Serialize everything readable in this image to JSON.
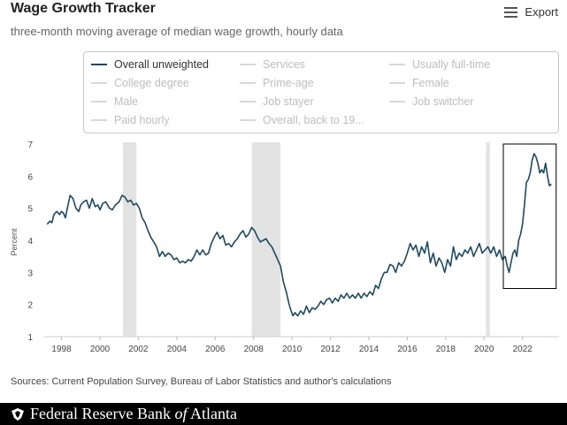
{
  "header": {
    "title": "Wage Growth Tracker",
    "subtitle": "three-month moving average of median wage growth, hourly data",
    "export_label": "Export",
    "export_icon": "hamburger-menu-icon"
  },
  "legend": {
    "items": [
      {
        "label": "Overall unweighted",
        "active": true
      },
      {
        "label": "Services",
        "active": false
      },
      {
        "label": "Usually full-time",
        "active": false
      },
      {
        "label": "College degree",
        "active": false
      },
      {
        "label": "Prime-age",
        "active": false
      },
      {
        "label": "Female",
        "active": false
      },
      {
        "label": "Male",
        "active": false
      },
      {
        "label": "Job stayer",
        "active": false
      },
      {
        "label": "Job switcher",
        "active": false
      },
      {
        "label": "Paid hourly",
        "active": false
      },
      {
        "label": "Overall, back to 19...",
        "active": false
      }
    ]
  },
  "chart_data": {
    "type": "line",
    "title": "",
    "xlabel": "",
    "ylabel": "Percent",
    "xlim": [
      1997.1,
      2023.9
    ],
    "ylim": [
      1,
      7
    ],
    "xticks": [
      "1998",
      "2000",
      "2002",
      "2004",
      "2006",
      "2008",
      "2010",
      "2012",
      "2014",
      "2016",
      "2018",
      "2020",
      "2022"
    ],
    "yticks": [
      "1",
      "2",
      "3",
      "4",
      "5",
      "6",
      "7"
    ],
    "grid": false,
    "line_color": "#1d4a63",
    "recession_color": "#e3e3e3",
    "recessions": [
      [
        2001.2,
        2001.9
      ],
      [
        2007.9,
        2009.4
      ],
      [
        2020.1,
        2020.3
      ]
    ],
    "highlight_box": {
      "x": [
        2021.0,
        2023.75
      ],
      "y": [
        2.5,
        7.0
      ]
    },
    "series": [
      {
        "values": [
          [
            1997.25,
            4.5
          ],
          [
            1997.4,
            4.6
          ],
          [
            1997.5,
            4.55
          ],
          [
            1997.6,
            4.8
          ],
          [
            1997.75,
            4.9
          ],
          [
            1997.9,
            4.8
          ],
          [
            1998.0,
            4.9
          ],
          [
            1998.1,
            4.85
          ],
          [
            1998.2,
            4.7
          ],
          [
            1998.3,
            5.0
          ],
          [
            1998.45,
            5.4
          ],
          [
            1998.6,
            5.3
          ],
          [
            1998.75,
            5.0
          ],
          [
            1998.9,
            4.9
          ],
          [
            1999.0,
            5.1
          ],
          [
            1999.15,
            5.2
          ],
          [
            1999.3,
            5.25
          ],
          [
            1999.45,
            5.0
          ],
          [
            1999.6,
            5.3
          ],
          [
            1999.75,
            5.05
          ],
          [
            1999.9,
            5.1
          ],
          [
            2000.0,
            4.95
          ],
          [
            2000.15,
            5.15
          ],
          [
            2000.3,
            5.2
          ],
          [
            2000.5,
            5.0
          ],
          [
            2000.65,
            4.95
          ],
          [
            2000.8,
            5.1
          ],
          [
            2001.0,
            5.2
          ],
          [
            2001.15,
            5.4
          ],
          [
            2001.3,
            5.35
          ],
          [
            2001.45,
            5.2
          ],
          [
            2001.6,
            5.25
          ],
          [
            2001.75,
            5.1
          ],
          [
            2001.9,
            5.15
          ],
          [
            2002.05,
            5.0
          ],
          [
            2002.2,
            4.7
          ],
          [
            2002.35,
            4.55
          ],
          [
            2002.5,
            4.3
          ],
          [
            2002.65,
            4.1
          ],
          [
            2002.8,
            3.95
          ],
          [
            2002.95,
            3.8
          ],
          [
            2003.1,
            3.5
          ],
          [
            2003.25,
            3.65
          ],
          [
            2003.4,
            3.5
          ],
          [
            2003.55,
            3.6
          ],
          [
            2003.7,
            3.55
          ],
          [
            2003.85,
            3.4
          ],
          [
            2004.0,
            3.45
          ],
          [
            2004.15,
            3.3
          ],
          [
            2004.3,
            3.35
          ],
          [
            2004.45,
            3.3
          ],
          [
            2004.6,
            3.4
          ],
          [
            2004.75,
            3.35
          ],
          [
            2004.9,
            3.5
          ],
          [
            2005.05,
            3.7
          ],
          [
            2005.2,
            3.55
          ],
          [
            2005.35,
            3.7
          ],
          [
            2005.5,
            3.55
          ],
          [
            2005.65,
            3.6
          ],
          [
            2005.8,
            3.9
          ],
          [
            2005.95,
            4.1
          ],
          [
            2006.1,
            4.25
          ],
          [
            2006.25,
            4.05
          ],
          [
            2006.4,
            4.15
          ],
          [
            2006.55,
            3.85
          ],
          [
            2006.7,
            3.9
          ],
          [
            2006.85,
            3.8
          ],
          [
            2007.0,
            3.95
          ],
          [
            2007.15,
            4.05
          ],
          [
            2007.3,
            4.2
          ],
          [
            2007.45,
            4.3
          ],
          [
            2007.6,
            4.1
          ],
          [
            2007.75,
            4.2
          ],
          [
            2007.9,
            4.4
          ],
          [
            2008.05,
            4.3
          ],
          [
            2008.2,
            4.1
          ],
          [
            2008.35,
            3.95
          ],
          [
            2008.5,
            4.0
          ],
          [
            2008.65,
            4.05
          ],
          [
            2008.8,
            3.9
          ],
          [
            2008.95,
            3.8
          ],
          [
            2009.1,
            3.6
          ],
          [
            2009.25,
            3.4
          ],
          [
            2009.4,
            3.2
          ],
          [
            2009.55,
            2.7
          ],
          [
            2009.7,
            2.4
          ],
          [
            2009.85,
            2.0
          ],
          [
            2009.95,
            1.8
          ],
          [
            2010.05,
            1.65
          ],
          [
            2010.15,
            1.75
          ],
          [
            2010.3,
            1.65
          ],
          [
            2010.45,
            1.8
          ],
          [
            2010.6,
            1.7
          ],
          [
            2010.75,
            1.95
          ],
          [
            2010.9,
            1.75
          ],
          [
            2011.05,
            1.9
          ],
          [
            2011.2,
            1.85
          ],
          [
            2011.35,
            1.95
          ],
          [
            2011.5,
            2.1
          ],
          [
            2011.65,
            2.0
          ],
          [
            2011.8,
            2.15
          ],
          [
            2011.95,
            2.2
          ],
          [
            2012.1,
            2.05
          ],
          [
            2012.25,
            2.2
          ],
          [
            2012.4,
            2.1
          ],
          [
            2012.55,
            2.3
          ],
          [
            2012.7,
            2.2
          ],
          [
            2012.85,
            2.35
          ],
          [
            2013.0,
            2.2
          ],
          [
            2013.15,
            2.3
          ],
          [
            2013.3,
            2.2
          ],
          [
            2013.45,
            2.35
          ],
          [
            2013.6,
            2.2
          ],
          [
            2013.75,
            2.35
          ],
          [
            2013.9,
            2.25
          ],
          [
            2014.05,
            2.4
          ],
          [
            2014.2,
            2.3
          ],
          [
            2014.35,
            2.6
          ],
          [
            2014.5,
            2.5
          ],
          [
            2014.65,
            2.8
          ],
          [
            2014.8,
            3.0
          ],
          [
            2014.95,
            3.0
          ],
          [
            2015.1,
            3.25
          ],
          [
            2015.25,
            3.2
          ],
          [
            2015.4,
            3.0
          ],
          [
            2015.55,
            3.3
          ],
          [
            2015.7,
            3.2
          ],
          [
            2015.85,
            3.35
          ],
          [
            2016.0,
            3.6
          ],
          [
            2016.15,
            3.9
          ],
          [
            2016.3,
            3.7
          ],
          [
            2016.45,
            3.85
          ],
          [
            2016.6,
            3.5
          ],
          [
            2016.75,
            3.8
          ],
          [
            2016.9,
            3.6
          ],
          [
            2017.05,
            3.95
          ],
          [
            2017.2,
            3.3
          ],
          [
            2017.35,
            3.6
          ],
          [
            2017.5,
            3.2
          ],
          [
            2017.65,
            3.45
          ],
          [
            2017.8,
            3.3
          ],
          [
            2017.95,
            3.0
          ],
          [
            2018.1,
            3.4
          ],
          [
            2018.25,
            3.2
          ],
          [
            2018.4,
            3.8
          ],
          [
            2018.55,
            3.4
          ],
          [
            2018.7,
            3.6
          ],
          [
            2018.85,
            3.5
          ],
          [
            2019.0,
            3.7
          ],
          [
            2019.15,
            3.6
          ],
          [
            2019.3,
            3.8
          ],
          [
            2019.45,
            3.5
          ],
          [
            2019.6,
            3.7
          ],
          [
            2019.75,
            3.9
          ],
          [
            2019.9,
            3.6
          ],
          [
            2020.05,
            3.7
          ],
          [
            2020.2,
            3.8
          ],
          [
            2020.35,
            3.6
          ],
          [
            2020.5,
            3.8
          ],
          [
            2020.65,
            3.5
          ],
          [
            2020.8,
            3.7
          ],
          [
            2020.95,
            3.4
          ],
          [
            2021.1,
            3.5
          ],
          [
            2021.2,
            3.2
          ],
          [
            2021.3,
            3.0
          ],
          [
            2021.4,
            3.3
          ],
          [
            2021.5,
            3.6
          ],
          [
            2021.6,
            3.7
          ],
          [
            2021.7,
            3.5
          ],
          [
            2021.8,
            4.0
          ],
          [
            2021.9,
            4.2
          ],
          [
            2022.0,
            4.5
          ],
          [
            2022.1,
            5.1
          ],
          [
            2022.2,
            5.8
          ],
          [
            2022.3,
            5.9
          ],
          [
            2022.4,
            6.1
          ],
          [
            2022.5,
            6.5
          ],
          [
            2022.6,
            6.7
          ],
          [
            2022.7,
            6.6
          ],
          [
            2022.8,
            6.4
          ],
          [
            2022.9,
            6.1
          ],
          [
            2023.0,
            6.2
          ],
          [
            2023.1,
            6.1
          ],
          [
            2023.2,
            6.4
          ],
          [
            2023.3,
            6.0
          ],
          [
            2023.4,
            5.7
          ],
          [
            2023.5,
            5.75
          ]
        ]
      }
    ]
  },
  "source": {
    "text": "Sources: Current Population Survey, Bureau of Labor Statistics and author's calculations"
  },
  "footer": {
    "logo_icon": "federal-reserve-eagle-icon",
    "org_name_prefix": "Federal Reserve Bank ",
    "org_name_of": "of",
    "org_name_suffix": " Atlanta"
  }
}
